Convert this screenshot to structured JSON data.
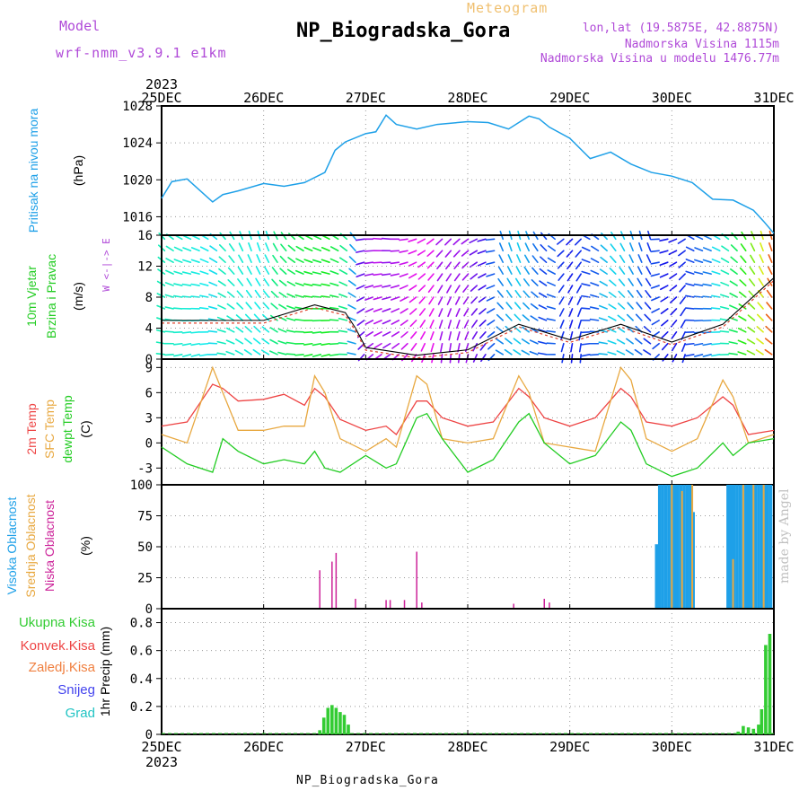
{
  "header": {
    "model_label": "Model",
    "model_name": "wrf-nmm_v3.9.1 e1km",
    "meteogram_label": "Meteogram",
    "station_title": "NP_Biogradska_Gora",
    "lonlat": "lon,lat (19.5875E, 42.8875N)",
    "altitude": "Nadmorska Visina 1115m",
    "model_altitude": "Nadmorska Visina u modelu 1476.77m",
    "watermark": "made by Angel",
    "bottom_caption": "NP_Biogradska_Gora"
  },
  "colors": {
    "pressure": "#1ea0e8",
    "temp2m": "#ee4444",
    "sfc_temp": "#e8a840",
    "dewpoint": "#22cc22",
    "high_cloud": "#1ea0e8",
    "mid_cloud": "#e8a840",
    "low_cloud": "#cc2299",
    "precip_total": "#33cc33",
    "precip_conv": "#ee4444",
    "precip_frz": "#f08040",
    "snow": "#4444ee",
    "hail": "#22c4c4"
  },
  "chart_data": [
    {
      "type": "line",
      "panel": "pressure",
      "ylabel_lines": [
        "Pritisak na nivou mora",
        "(hPa)"
      ],
      "x_axis_top": {
        "year": "2023",
        "ticks": [
          "25DEC",
          "26DEC",
          "27DEC",
          "28DEC",
          "29DEC",
          "30DEC",
          "31DEC"
        ]
      },
      "ylim": [
        1014,
        1028
      ],
      "yticks": [
        1016,
        1020,
        1024,
        1028
      ],
      "grid": true,
      "x_days": [
        0,
        0.1,
        0.25,
        0.5,
        0.6,
        0.75,
        1.0,
        1.2,
        1.4,
        1.6,
        1.7,
        1.8,
        2.0,
        2.1,
        2.2,
        2.3,
        2.5,
        2.7,
        2.9,
        3.0,
        3.2,
        3.4,
        3.5,
        3.6,
        3.7,
        3.8,
        4.0,
        4.2,
        4.4,
        4.6,
        4.8,
        5.0,
        5.2,
        5.4,
        5.6,
        5.8,
        5.9,
        6.0
      ],
      "series": [
        {
          "name": "Pritisak na nivou mora",
          "values": [
            1018.0,
            1019.8,
            1020.1,
            1017.6,
            1018.4,
            1018.8,
            1019.6,
            1019.3,
            1019.7,
            1020.8,
            1023.2,
            1024.1,
            1025.0,
            1025.2,
            1027.0,
            1026.0,
            1025.5,
            1026.0,
            1026.2,
            1026.3,
            1026.2,
            1025.5,
            1026.2,
            1026.9,
            1026.6,
            1025.7,
            1024.5,
            1022.3,
            1023.0,
            1021.7,
            1020.8,
            1020.4,
            1019.7,
            1017.9,
            1017.8,
            1016.7,
            1015.5,
            1014.2
          ]
        }
      ]
    },
    {
      "type": "barbs",
      "panel": "wind",
      "ylabel_lines": [
        "10m Vjetar",
        "Brzina i Pravac",
        "(m/s)"
      ],
      "ylim": [
        0,
        16
      ],
      "yticks": [
        0,
        4,
        8,
        12,
        16
      ],
      "grid": true,
      "compass_legend": "W <-|-> E",
      "x_days": [
        0,
        0.5,
        1.0,
        1.5,
        1.8,
        1.9,
        2.0,
        2.5,
        3.0,
        3.5,
        4.0,
        4.5,
        5.0,
        5.5,
        6.0
      ],
      "series": [
        {
          "name": "wind speed",
          "values": [
            5,
            5,
            5,
            7,
            6,
            4,
            1.5,
            0.5,
            1.2,
            4.5,
            2.5,
            4.5,
            2.2,
            4.5,
            10.5
          ]
        }
      ]
    },
    {
      "type": "line",
      "panel": "temperature",
      "ylabel_lines": [
        "2m Temp",
        "SFC Temp",
        "dewpt Temp",
        "(C)"
      ],
      "ylim": [
        -5,
        10
      ],
      "yticks": [
        -3,
        0,
        3,
        6,
        9
      ],
      "grid": true,
      "x_days": [
        0,
        0.25,
        0.5,
        0.6,
        0.75,
        1.0,
        1.2,
        1.4,
        1.5,
        1.6,
        1.75,
        2.0,
        2.2,
        2.3,
        2.5,
        2.6,
        2.75,
        3.0,
        3.25,
        3.5,
        3.6,
        3.75,
        4.0,
        4.25,
        4.5,
        4.6,
        4.75,
        5.0,
        5.25,
        5.5,
        5.6,
        5.75,
        6.0
      ],
      "series": [
        {
          "name": "2m Temp",
          "values": [
            2.0,
            2.5,
            7.0,
            6.5,
            5.0,
            5.2,
            5.8,
            4.5,
            6.5,
            5.5,
            2.8,
            1.5,
            2.0,
            1.0,
            5.0,
            5.0,
            3.0,
            2.0,
            2.5,
            6.5,
            5.5,
            3.0,
            2.0,
            3.0,
            6.5,
            5.5,
            2.5,
            2.0,
            3.0,
            5.5,
            4.5,
            1.0,
            1.5
          ]
        },
        {
          "name": "SFC Temp",
          "values": [
            1.0,
            0.0,
            9.0,
            6.0,
            1.5,
            1.5,
            2.0,
            2.0,
            8.0,
            6.0,
            0.5,
            -1.0,
            0.5,
            -0.5,
            8.0,
            7.0,
            0.5,
            0.0,
            0.5,
            8.0,
            6.0,
            0.0,
            -0.5,
            -1.0,
            9.0,
            7.5,
            0.5,
            -1.0,
            0.5,
            7.5,
            5.5,
            0.0,
            1.0
          ]
        },
        {
          "name": "dewpt Temp",
          "values": [
            -0.5,
            -2.5,
            -3.5,
            0.5,
            -1.0,
            -2.5,
            -2.0,
            -2.5,
            -1.0,
            -3.0,
            -3.5,
            -1.5,
            -3.0,
            -2.5,
            3.0,
            3.5,
            0.5,
            -3.5,
            -2.0,
            2.5,
            3.5,
            0.0,
            -2.5,
            -1.5,
            2.5,
            1.5,
            -2.5,
            -4.0,
            -3.0,
            0.0,
            -1.5,
            0.0,
            0.5
          ]
        }
      ]
    },
    {
      "type": "bar",
      "panel": "cloud",
      "ylabel_lines": [
        "Visoka Oblacnost",
        "Srednja Oblacnost",
        "Niska Oblacnost",
        "(%)"
      ],
      "ylim": [
        0,
        100
      ],
      "yticks": [
        0,
        25,
        50,
        75,
        100
      ],
      "grid": true,
      "series": [
        {
          "name": "Visoka Oblacnost",
          "x_days": [
            4.85,
            4.88,
            4.91,
            4.94,
            4.97,
            5.0,
            5.03,
            5.06,
            5.09,
            5.12,
            5.15,
            5.18,
            5.21,
            5.55,
            5.58,
            5.61,
            5.64,
            5.67,
            5.7,
            5.73,
            5.76,
            5.79,
            5.82,
            5.85,
            5.88,
            5.91,
            5.94,
            5.97
          ],
          "values": [
            52,
            100,
            100,
            100,
            100,
            100,
            100,
            100,
            100,
            100,
            100,
            100,
            78,
            100,
            100,
            100,
            100,
            100,
            100,
            100,
            100,
            100,
            100,
            100,
            100,
            100,
            100,
            100
          ]
        },
        {
          "name": "Srednja Oblacnost",
          "x_days": [
            5.0,
            5.1,
            5.2,
            5.6,
            5.7,
            5.8,
            5.9
          ],
          "values": [
            100,
            95,
            100,
            40,
            100,
            100,
            100
          ]
        },
        {
          "name": "Niska Oblacnost",
          "x_days": [
            1.55,
            1.67,
            1.71,
            1.9,
            2.2,
            2.24,
            2.38,
            2.5,
            2.55,
            3.45,
            3.75,
            3.8
          ],
          "values": [
            31,
            38,
            45,
            8,
            7,
            7,
            7,
            46,
            5,
            4,
            8,
            5
          ]
        }
      ]
    },
    {
      "type": "bar",
      "panel": "precip",
      "ylabel_lines": [
        "1hr Precip (mm)"
      ],
      "legend": [
        "Ukupna Kisa",
        "Konvek.Kisa",
        "Zaledj.Kisa",
        "Snijeg",
        "Grad"
      ],
      "ylim": [
        0,
        0.9
      ],
      "yticks": [
        0,
        0.2,
        0.4,
        0.6,
        0.8
      ],
      "grid": true,
      "x_axis_bottom": {
        "year": "2023",
        "ticks": [
          "25DEC",
          "26DEC",
          "27DEC",
          "28DEC",
          "29DEC",
          "30DEC",
          "31DEC"
        ]
      },
      "series": [
        {
          "name": "Ukupna Kisa",
          "x_days": [
            1.55,
            1.59,
            1.63,
            1.67,
            1.71,
            1.75,
            1.79,
            1.83,
            5.65,
            5.7,
            5.75,
            5.8,
            5.85,
            5.88,
            5.92,
            5.96
          ],
          "values": [
            0.03,
            0.12,
            0.19,
            0.21,
            0.19,
            0.16,
            0.14,
            0.07,
            0.02,
            0.06,
            0.05,
            0.04,
            0.07,
            0.18,
            0.64,
            0.72
          ]
        }
      ]
    }
  ]
}
